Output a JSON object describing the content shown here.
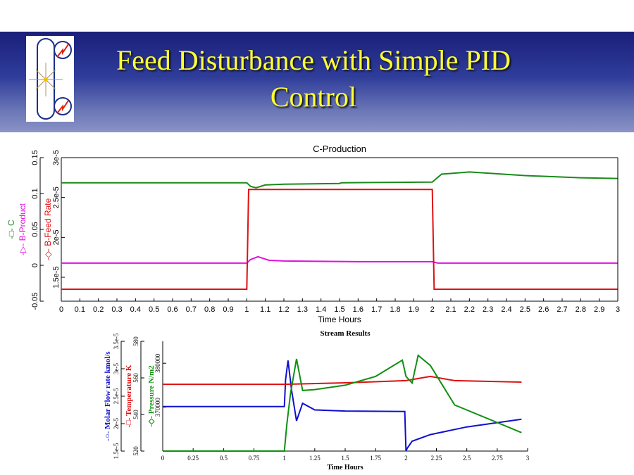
{
  "slide": {
    "title_line1": "Feed Disturbance with Simple PID",
    "title_line2": "Control"
  },
  "chart_data": [
    {
      "type": "line",
      "title": "C-Production",
      "xlabel": "Time Hours",
      "xlim": [
        0,
        3
      ],
      "xticks": [
        "0",
        "0.1",
        "0.2",
        "0.3",
        "0.4",
        "0.5",
        "0.6",
        "0.7",
        "0.8",
        "0.9",
        "1",
        "1.1",
        "1.2",
        "1.3",
        "1.4",
        "1.5",
        "1.6",
        "1.7",
        "1.8",
        "1.9",
        "2",
        "2.1",
        "2.2",
        "2.3",
        "2.4",
        "2.5",
        "2.6",
        "2.7",
        "2.8",
        "2.9",
        "3"
      ],
      "y1": {
        "ylim": [
          -0.05,
          0.15
        ],
        "ticks": [
          "-0.05",
          "0",
          "0.05",
          "0.1",
          "0.15"
        ],
        "labels": [
          "C",
          "B-Product"
        ]
      },
      "y2": {
        "ylim": [
          1.2e-05,
          3e-05
        ],
        "ticks": [
          "1.5e-5",
          "2e-5",
          "2.5e-5",
          "3e-5"
        ],
        "labels": [
          "B-Feed Rate"
        ]
      },
      "series": [
        {
          "name": "C",
          "axis": "y1",
          "color": "#1a8a1a",
          "x": [
            0,
            1,
            1.02,
            1.05,
            1.1,
            1.2,
            1.5,
            1.51,
            2,
            2.05,
            2.2,
            2.5,
            2.8,
            3
          ],
          "y": [
            0.115,
            0.115,
            0.11,
            0.108,
            0.112,
            0.113,
            0.114,
            0.115,
            0.116,
            0.127,
            0.13,
            0.125,
            0.122,
            0.121
          ]
        },
        {
          "name": "B-Product",
          "axis": "y1",
          "color": "#e010e0",
          "x": [
            0,
            1,
            1.02,
            1.06,
            1.12,
            1.2,
            1.6,
            2,
            2.03,
            2.1,
            3
          ],
          "y": [
            0.003,
            0.003,
            0.008,
            0.012,
            0.007,
            0.006,
            0.005,
            0.005,
            0.003,
            0.003,
            0.003
          ]
        },
        {
          "name": "B-Feed Rate",
          "axis": "y2",
          "color": "#e01010",
          "x": [
            0,
            1,
            1.01,
            2,
            2.01,
            3
          ],
          "y": [
            1.35e-05,
            1.35e-05,
            2.6e-05,
            2.6e-05,
            1.35e-05,
            1.35e-05
          ]
        }
      ]
    },
    {
      "type": "line",
      "title": "Stream Results",
      "xlabel": "Time Hours",
      "xlim": [
        0,
        3
      ],
      "xticks": [
        "0",
        "0.25",
        "0.5",
        "0.75",
        "1",
        "1.25",
        "1.5",
        "1.75",
        "2",
        "2.25",
        "2.5",
        "2.75",
        "3"
      ],
      "y1": {
        "ylim": [
          1.5e-05,
          3.5e-05
        ],
        "ticks": [
          "1.5e-5",
          "2e-5",
          "2.5e-5",
          "3e-5",
          "3.5e-5"
        ],
        "label": "Molar Flow rate kmol/s"
      },
      "y2": {
        "ylim": [
          520,
          580
        ],
        "ticks": [
          "520",
          "540",
          "560",
          "580"
        ],
        "label": "Temperature K"
      },
      "y3": {
        "ylim": [
          360000,
          385000
        ],
        "ticks": [
          "370000",
          "380000"
        ],
        "label": "Pressure N/m2"
      },
      "series": [
        {
          "name": "Molar Flow rate kmol/s",
          "axis": "y1",
          "color": "#1010d0",
          "x": [
            0,
            1,
            1.01,
            1.03,
            1.06,
            1.1,
            1.15,
            1.25,
            1.5,
            1.99,
            2,
            2.01,
            2.05,
            2.2,
            2.5,
            2.95
          ],
          "y": [
            2.31e-05,
            2.31e-05,
            2.8e-05,
            3.15e-05,
            2.6e-05,
            2.05e-05,
            2.37e-05,
            2.25e-05,
            2.23e-05,
            2.22e-05,
            1.5e-05,
            1.55e-05,
            1.68e-05,
            1.8e-05,
            1.94e-05,
            2.08e-05
          ]
        },
        {
          "name": "Temperature K",
          "axis": "y2",
          "color": "#e01010",
          "x": [
            0,
            1,
            1.5,
            2,
            2.2,
            2.4,
            2.95
          ],
          "y": [
            556.5,
            556.5,
            557.3,
            558.5,
            560.8,
            558.5,
            557.7
          ]
        },
        {
          "name": "Pressure N/m2",
          "axis": "y3",
          "color": "#109010",
          "x": [
            0,
            1,
            1.02,
            1.05,
            1.1,
            1.15,
            1.25,
            1.5,
            1.75,
            1.97,
            2.0,
            2.05,
            2.1,
            2.2,
            2.4,
            2.75,
            2.95
          ],
          "y": [
            360000,
            360000,
            366000,
            373000,
            381000,
            373800,
            374000,
            375000,
            377000,
            380700,
            377000,
            375500,
            381800,
            379500,
            370500,
            366500,
            364200
          ]
        }
      ]
    }
  ]
}
